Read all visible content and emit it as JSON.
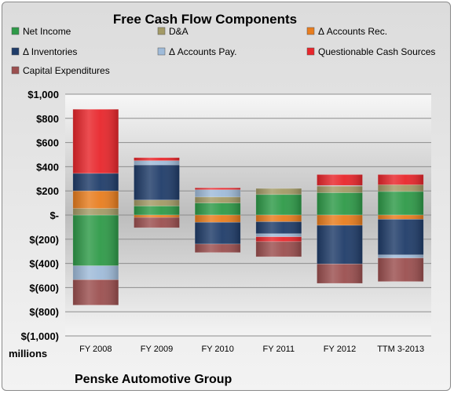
{
  "chart_data": {
    "type": "bar",
    "stacked": true,
    "title": "Free Cash Flow Components",
    "unit_label": "millions",
    "company": "Penske Automotive Group",
    "categories": [
      "FY 2008",
      "FY 2009",
      "FY 2010",
      "FY 2011",
      "FY 2012",
      "TTM 3-2013"
    ],
    "ylim": [
      -1000,
      1000
    ],
    "yticks": [
      1000,
      800,
      600,
      400,
      200,
      0,
      -200,
      -400,
      -600,
      -800,
      -1000
    ],
    "ytick_labels": [
      "$1,000",
      "$800",
      "$600",
      "$400",
      "$200",
      "$-",
      "$(200)",
      "$(400)",
      "$(600)",
      "$(800)",
      "$(1,000)"
    ],
    "grid": true,
    "legend_position": "top",
    "series": [
      {
        "name": "Net Income",
        "color": "#2e9a48",
        "values": [
          -420,
          75,
          100,
          170,
          185,
          195
        ]
      },
      {
        "name": "D&A",
        "color": "#a39a66",
        "values": [
          55,
          50,
          50,
          50,
          55,
          55
        ]
      },
      {
        "name": "Δ Accounts Rec.",
        "color": "#e87d1e",
        "values": [
          145,
          -20,
          -60,
          -55,
          -85,
          -35
        ]
      },
      {
        "name": "Δ Inventories",
        "color": "#1f3c69",
        "values": [
          145,
          290,
          -180,
          -100,
          -320,
          -295
        ]
      },
      {
        "name": "Δ Accounts Pay.",
        "color": "#9fbbd9",
        "values": [
          -115,
          35,
          60,
          -25,
          5,
          -25
        ]
      },
      {
        "name": "Questionable Cash Sources",
        "color": "#e8262b",
        "values": [
          530,
          25,
          15,
          -40,
          90,
          85
        ]
      },
      {
        "name": "Capital Expenditures",
        "color": "#9b4f4f",
        "values": [
          -210,
          -85,
          -70,
          -125,
          -160,
          -195
        ]
      }
    ]
  }
}
